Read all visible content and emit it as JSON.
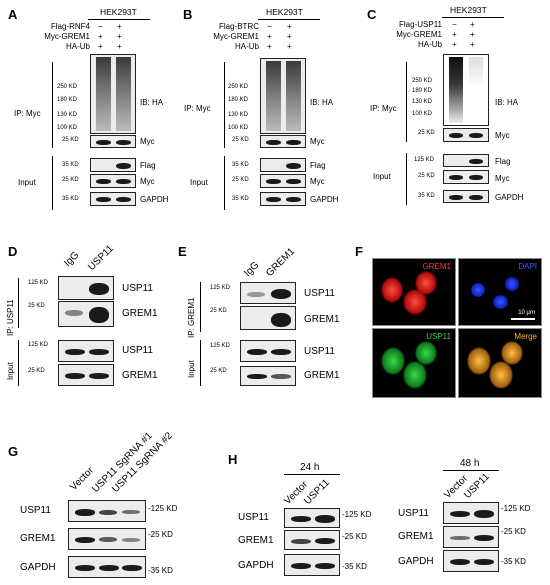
{
  "panels": {
    "A": {
      "letter": "A",
      "cell_line": "HEK293T",
      "rows": [
        {
          "label": "Flag-RNF4",
          "vals": [
            "−",
            "+"
          ]
        },
        {
          "label": "Myc-GREM1",
          "vals": [
            "+",
            "+"
          ]
        },
        {
          "label": "HA-Ub",
          "vals": [
            "+",
            "+"
          ]
        }
      ],
      "ip": "IP: Myc",
      "ib": "IB: HA",
      "input": "Input",
      "mw_ub": [
        "250 KD",
        "180 KD",
        "130 KD",
        "100 KD"
      ],
      "mw_myc": "25 KD",
      "mw_flag": "35 KD",
      "mw_myc_in": "25 KD",
      "mw_gapdh": "35 KD",
      "right": [
        "Myc",
        "Flag",
        "Myc",
        "GAPDH"
      ]
    },
    "B": {
      "letter": "B",
      "cell_line": "HEK293T",
      "rows": [
        {
          "label": "Flag-BTRC",
          "vals": [
            "−",
            "+"
          ]
        },
        {
          "label": "Myc-GREM1",
          "vals": [
            "+",
            "+"
          ]
        },
        {
          "label": "HA-Ub",
          "vals": [
            "+",
            "+"
          ]
        }
      ],
      "ip": "IP: Myc",
      "ib": "IB: HA",
      "input": "Input",
      "mw_ub": [
        "250 KD",
        "180 KD",
        "130 KD",
        "100 KD"
      ],
      "mw_myc": "25 KD",
      "mw_flag": "35 KD",
      "mw_myc_in": "25 KD",
      "mw_gapdh": "35 KD",
      "right": [
        "Myc",
        "Flag",
        "Myc",
        "GAPDH"
      ]
    },
    "C": {
      "letter": "C",
      "cell_line": "HEK293T",
      "rows": [
        {
          "label": "Flag-USP11",
          "vals": [
            "−",
            "+"
          ]
        },
        {
          "label": "Myc-GREM1",
          "vals": [
            "+",
            "+"
          ]
        },
        {
          "label": "HA-Ub",
          "vals": [
            "+",
            "+"
          ]
        }
      ],
      "ip": "IP: Myc",
      "ib": "IB: HA",
      "input": "Input",
      "mw_ub": [
        "250 KD",
        "180 KD",
        "130 KD",
        "100 KD"
      ],
      "mw_myc": "25 KD",
      "mw_flag": "125 KD",
      "mw_myc_in": "25 KD",
      "mw_gapdh": "35 KD",
      "right": [
        "Myc",
        "Flag",
        "Myc",
        "GAPDH"
      ]
    },
    "D": {
      "letter": "D",
      "lanes": [
        "IgG",
        "USP11"
      ],
      "ip": "IP: USP11",
      "input": "Input",
      "mw": [
        "125 KD",
        "25 KD",
        "125 KD",
        "25 KD"
      ],
      "right": [
        "USP11",
        "GREM1",
        "USP11",
        "GREM1"
      ]
    },
    "E": {
      "letter": "E",
      "lanes": [
        "IgG",
        "GREM1"
      ],
      "ip": "IP: GREM1",
      "input": "Input",
      "mw": [
        "125 KD",
        "25 KD",
        "125 KD",
        "25 KD"
      ],
      "right": [
        "USP11",
        "GREM1",
        "USP11",
        "GREM1"
      ]
    },
    "F": {
      "letter": "F",
      "labels": [
        "GREM1",
        "DAPI",
        "USP11",
        "Merge"
      ],
      "scale": "10 μm",
      "label_colors": [
        "#ff3b2f",
        "#3b5bff",
        "#2fd34a",
        "#ffb020"
      ]
    },
    "G": {
      "letter": "G",
      "lanes": [
        "Vector",
        "USP11 SgRNA #1",
        "USP11 SgRNA #2"
      ],
      "left": [
        "USP11",
        "GREM1",
        "GAPDH"
      ],
      "mw": [
        "-125 KD",
        "-25 KD",
        "-35 KD"
      ]
    },
    "H": {
      "letter": "H",
      "times": [
        "24 h",
        "48 h"
      ],
      "lanes": [
        "Vector",
        "USP11"
      ],
      "left": [
        "USP11",
        "GREM1",
        "GAPDH"
      ],
      "mw": [
        "-125 KD",
        "-25 KD",
        "-35 KD"
      ]
    }
  }
}
